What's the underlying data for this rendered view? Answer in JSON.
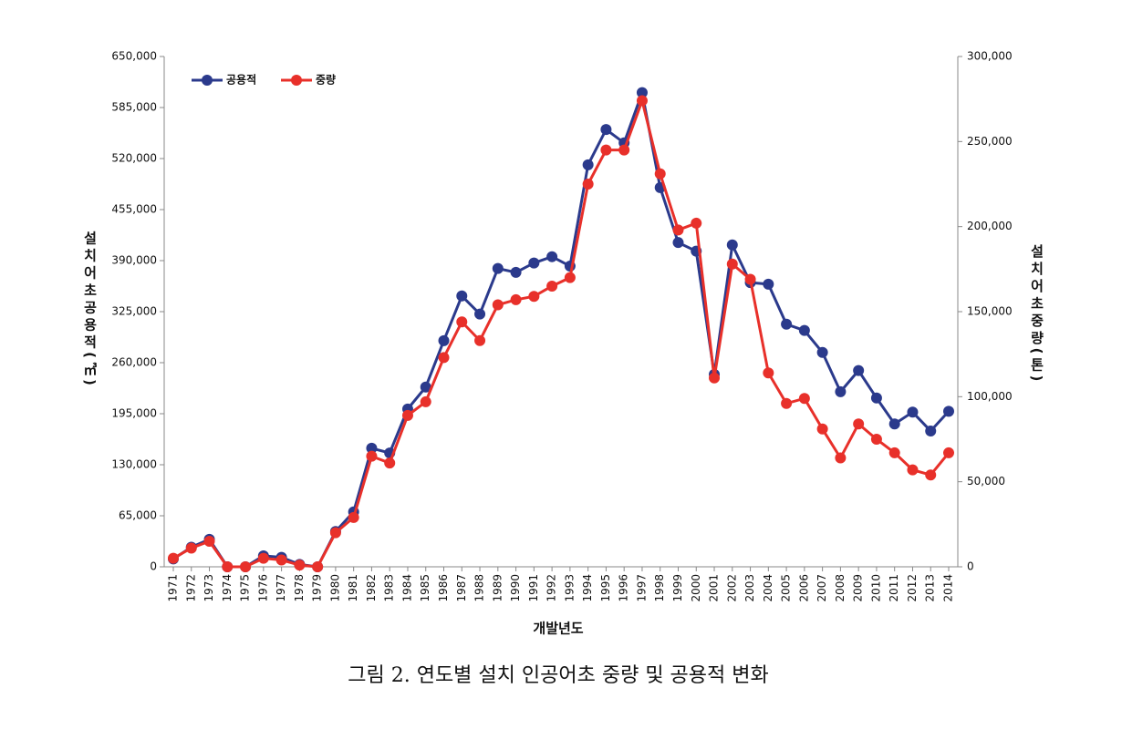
{
  "chart_data": {
    "type": "line",
    "x_label": "개발년도",
    "y_label": "설치어초공용적(㎥)",
    "y2_label": "설치어초중량(톤)",
    "caption": "그림 2. 연도별 설치 인공어초 중량 및 공용적 변화",
    "categories": [
      "1971",
      "1972",
      "1973",
      "1974",
      "1975",
      "1976",
      "1977",
      "1978",
      "1979",
      "1980",
      "1981",
      "1982",
      "1983",
      "1984",
      "1985",
      "1986",
      "1987",
      "1988",
      "1989",
      "1990",
      "1991",
      "1992",
      "1993",
      "1994",
      "1995",
      "1996",
      "1997",
      "1998",
      "1999",
      "2000",
      "2001",
      "2002",
      "2003",
      "2004",
      "2005",
      "2006",
      "2007",
      "2008",
      "2009",
      "2010",
      "2011",
      "2012",
      "2013",
      "2014"
    ],
    "series": [
      {
        "name": "공용적",
        "color": "#2b3a8c",
        "axis": "y",
        "values": [
          10000,
          25000,
          35000,
          0,
          0,
          14000,
          12000,
          3000,
          0,
          45000,
          70000,
          151000,
          145000,
          201000,
          229000,
          288000,
          345000,
          322000,
          380000,
          375000,
          387000,
          395000,
          383000,
          512000,
          557000,
          540000,
          604000,
          483000,
          413000,
          402000,
          245000,
          410000,
          362000,
          360000,
          309000,
          301000,
          273000,
          223000,
          250000,
          215000,
          182000,
          197000,
          173000,
          198000
        ]
      },
      {
        "name": "중량",
        "color": "#e8302a",
        "axis": "y2",
        "values": [
          5000,
          11000,
          15000,
          0,
          0,
          5000,
          4000,
          1000,
          0,
          20000,
          29000,
          65000,
          61000,
          89000,
          97000,
          123000,
          144000,
          133000,
          154000,
          157000,
          159000,
          165000,
          170000,
          225000,
          245000,
          245000,
          274000,
          231000,
          198000,
          202000,
          111000,
          178000,
          169000,
          114000,
          96000,
          99000,
          81000,
          64000,
          84000,
          75000,
          67000,
          57000,
          54000,
          67000
        ]
      }
    ],
    "ylim": [
      0,
      650000
    ],
    "yticks": [
      0,
      {
        "value": 65000,
        "label": "65,000"
      },
      {
        "value": 130000,
        "label": "130,000"
      },
      {
        "value": 195000,
        "label": "195,000"
      },
      {
        "value": 260000,
        "label": "260,000"
      },
      {
        "value": 325000,
        "label": "325,000"
      },
      {
        "value": 390000,
        "label": "390,000"
      },
      {
        "value": 455000,
        "label": "455,000"
      },
      {
        "value": 520000,
        "label": "520,000"
      },
      {
        "value": 585000,
        "label": "585,000"
      },
      {
        "value": 650000,
        "label": "650,000"
      }
    ],
    "y2lim": [
      0,
      300000
    ],
    "y2ticks": [
      0,
      {
        "value": 50000,
        "label": "50,000"
      },
      {
        "value": 100000,
        "label": "100,000"
      },
      {
        "value": 150000,
        "label": "150,000"
      },
      {
        "value": 200000,
        "label": "200,000"
      },
      {
        "value": 250000,
        "label": "250,000"
      },
      {
        "value": 300000,
        "label": "300,000"
      }
    ],
    "legend": "top-left"
  }
}
